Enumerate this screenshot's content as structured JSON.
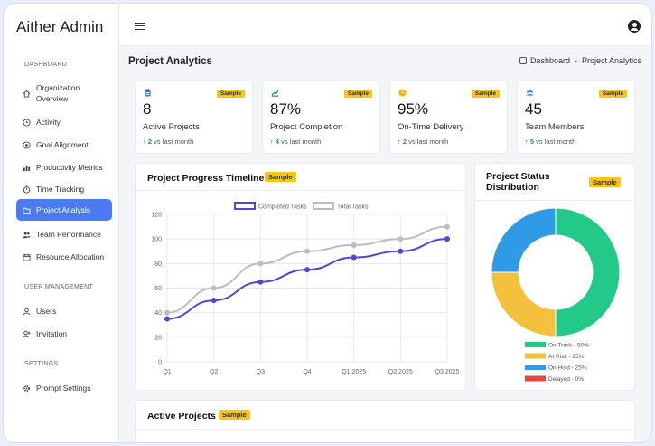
{
  "app": {
    "title": "Aither Admin"
  },
  "sidebar": {
    "sections": [
      {
        "title": "DASHBOARD",
        "items": [
          {
            "label": "Organization Overview",
            "icon": "home-icon"
          },
          {
            "label": "Activity",
            "icon": "clock-icon"
          },
          {
            "label": "Goal Alignment",
            "icon": "target-icon"
          },
          {
            "label": "Productivity Metrics",
            "icon": "bar-chart-icon"
          },
          {
            "label": "Time Tracking",
            "icon": "timer-icon"
          },
          {
            "label": "Project Analysis",
            "icon": "folder-icon",
            "active": true
          },
          {
            "label": "Team Performance",
            "icon": "users-icon"
          },
          {
            "label": "Resource Allocation",
            "icon": "calendar-icon"
          }
        ]
      },
      {
        "title": "USER MANAGEMENT",
        "items": [
          {
            "label": "Users",
            "icon": "user-icon"
          },
          {
            "label": "Invitation",
            "icon": "user-plus-icon"
          }
        ]
      },
      {
        "title": "SETTINGS",
        "items": [
          {
            "label": "Prompt Settings",
            "icon": "gear-icon"
          }
        ]
      }
    ]
  },
  "page": {
    "title": "Project Analytics",
    "breadcrumb": [
      "Dashboard",
      "-",
      "Project Analytics"
    ]
  },
  "badge": "Sample",
  "stats": [
    {
      "value": "8",
      "label": "Active Projects",
      "change": "2",
      "suffix": "vs last month",
      "icon": "clipboard-icon",
      "color": "#3b82f6"
    },
    {
      "value": "87%",
      "label": "Project Completion",
      "change": "4",
      "suffix": "vs last month",
      "icon": "trend-icon",
      "color": "#16a34a"
    },
    {
      "value": "95%",
      "label": "On-Time Delivery",
      "change": "2",
      "suffix": "vs last month",
      "icon": "clock-icon",
      "color": "#f5b400"
    },
    {
      "value": "45",
      "label": "Team Members",
      "change": "5",
      "suffix": "vs last month",
      "icon": "team-icon",
      "color": "#3b82f6"
    }
  ],
  "timeline": {
    "title": "Project Progress Timeline"
  },
  "distribution": {
    "title_line1": "Project Status",
    "title_line2": "Distribution"
  },
  "active_projects": {
    "title": "Active Projects"
  },
  "chart_data": [
    {
      "type": "line",
      "title": "Project Progress Timeline",
      "categories": [
        "Q1",
        "Q2",
        "Q3",
        "Q4",
        "Q1 2025",
        "Q2 2025",
        "Q3 2025"
      ],
      "series": [
        {
          "name": "Completed Tasks",
          "values": [
            35,
            50,
            65,
            75,
            85,
            90,
            100
          ],
          "color": "#5b3fd6"
        },
        {
          "name": "Total Tasks",
          "values": [
            40,
            60,
            80,
            90,
            95,
            100,
            110
          ],
          "color": "#bdbdbd"
        }
      ],
      "ylim": [
        0,
        120
      ],
      "yticks": [
        0,
        20,
        40,
        60,
        80,
        100,
        120
      ],
      "legend": "top"
    },
    {
      "type": "pie",
      "title": "Project Status Distribution",
      "labels": [
        "On Track - 50%",
        "At Risk - 25%",
        "On Hold - 25%",
        "Delayed - 0%"
      ],
      "values": [
        50,
        25,
        25,
        0
      ],
      "colors": [
        "#22c987",
        "#f4c13d",
        "#2f9be6",
        "#e2463f"
      ],
      "legend": "bottom"
    }
  ]
}
